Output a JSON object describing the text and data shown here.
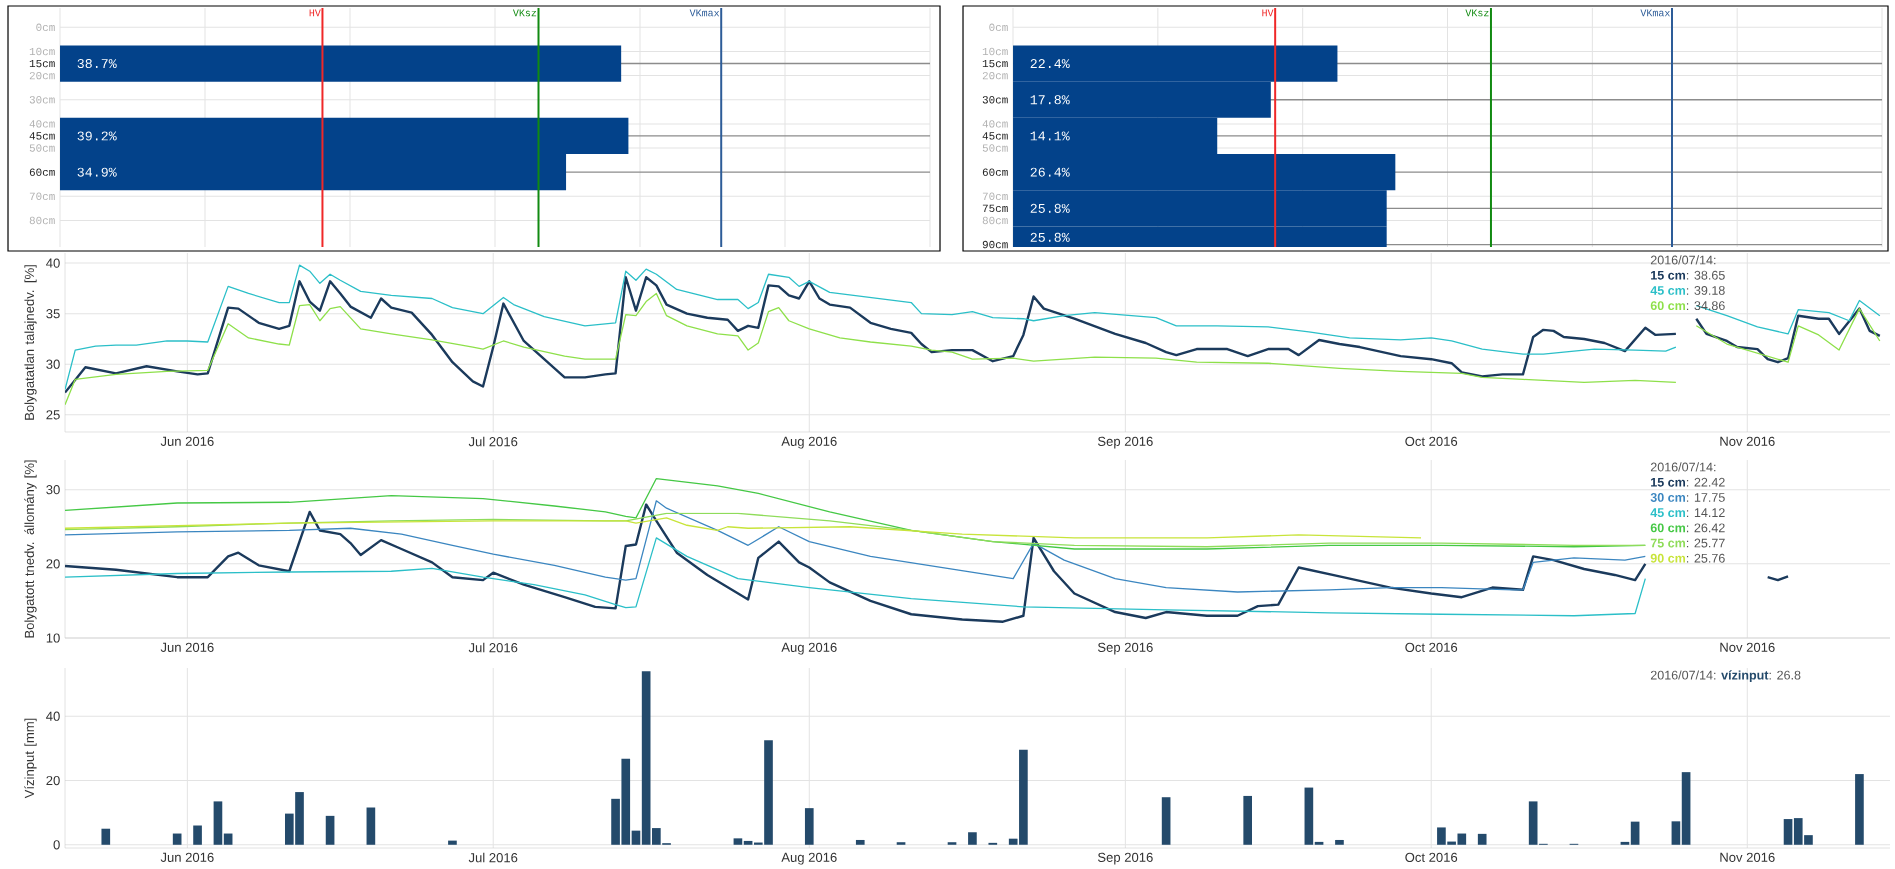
{
  "chart_data": [
    {
      "type": "bar",
      "orientation": "horizontal",
      "x": [
        15,
        45,
        60
      ],
      "values": [
        38.7,
        39.2,
        34.9
      ],
      "value_labels": [
        "38.7%",
        "39.2%",
        "34.9%"
      ],
      "color": "#03428a",
      "xlim": [
        0,
        60
      ],
      "xticks": [
        {
          "value": 0,
          "label": null
        },
        {
          "value": 10,
          "label": null
        },
        {
          "value": 20,
          "label": null
        },
        {
          "value": 30,
          "label": null
        },
        {
          "value": 40,
          "label": null
        },
        {
          "value": 50,
          "label": null
        },
        {
          "value": 60,
          "label": null
        }
      ],
      "ylim": [
        91,
        -8
      ],
      "yticks": [
        {
          "value": 0,
          "label": "0cm"
        },
        {
          "value": 10,
          "label": "10cm"
        },
        {
          "value": 15,
          "label": "15cm"
        },
        {
          "value": 20,
          "label": "20cm"
        },
        {
          "value": 30,
          "label": "30cm"
        },
        {
          "value": 40,
          "label": "40cm"
        },
        {
          "value": 45,
          "label": "45cm"
        },
        {
          "value": 50,
          "label": "50cm"
        },
        {
          "value": 60,
          "label": "60cm"
        },
        {
          "value": 70,
          "label": "70cm"
        },
        {
          "value": 80,
          "label": "80cm"
        }
      ],
      "grid": true,
      "tick_labels": "y",
      "ref_lines": [
        {
          "axis": "x",
          "value": 18.1,
          "label": "HV",
          "color": "#f02828"
        },
        {
          "axis": "x",
          "value": 33.0,
          "label": "VKsz",
          "color": "#118a11"
        },
        {
          "axis": "x",
          "value": 45.6,
          "label": "VKmax",
          "color": "#2d5c98"
        }
      ]
    },
    {
      "type": "bar",
      "orientation": "horizontal",
      "x": [
        15,
        30,
        45,
        60,
        75,
        90
      ],
      "values": [
        22.4,
        17.8,
        14.1,
        26.4,
        25.8,
        25.8
      ],
      "value_labels": [
        "22.4%",
        "17.8%",
        "14.1%",
        "26.4%",
        "25.8%",
        "25.8%"
      ],
      "color": "#03428a",
      "xlim": [
        0,
        60
      ],
      "xticks": [
        {
          "value": 0,
          "label": null
        },
        {
          "value": 10,
          "label": null
        },
        {
          "value": 20,
          "label": null
        },
        {
          "value": 30,
          "label": null
        },
        {
          "value": 40,
          "label": null
        },
        {
          "value": 50,
          "label": null
        },
        {
          "value": 60,
          "label": null
        }
      ],
      "ylim": [
        91,
        -8
      ],
      "yticks": [
        {
          "value": 0,
          "label": "0cm"
        },
        {
          "value": 10,
          "label": "10cm"
        },
        {
          "value": 15,
          "label": "15cm"
        },
        {
          "value": 20,
          "label": "20cm"
        },
        {
          "value": 30,
          "label": "30cm"
        },
        {
          "value": 40,
          "label": "40cm"
        },
        {
          "value": 45,
          "label": "45cm"
        },
        {
          "value": 50,
          "label": "50cm"
        },
        {
          "value": 60,
          "label": "60cm"
        },
        {
          "value": 70,
          "label": "70cm"
        },
        {
          "value": 75,
          "label": "75cm"
        },
        {
          "value": 80,
          "label": "80cm"
        },
        {
          "value": 90,
          "label": "90cm"
        }
      ],
      "grid": true,
      "tick_labels": "y",
      "ref_lines": [
        {
          "axis": "x",
          "value": 18.1,
          "label": "HV",
          "color": "#f02828"
        },
        {
          "axis": "x",
          "value": 33.0,
          "label": "VKsz",
          "color": "#118a11"
        },
        {
          "axis": "x",
          "value": 45.5,
          "label": "VKmax",
          "color": "#2d5c98"
        }
      ]
    },
    {
      "type": "line",
      "ylabel": "Bolygatatlan talajnedv. [%]",
      "legend": "top right",
      "legend_title": "2016/07/14:",
      "grid": true,
      "xlim": [
        "2016-05-20",
        "2016-11-15"
      ],
      "xticks": [
        {
          "value": "2016-06-01",
          "label": "Jun 2016"
        },
        {
          "value": "2016-07-01",
          "label": "Jul 2016"
        },
        {
          "value": "2016-08-01",
          "label": "Aug 2016"
        },
        {
          "value": "2016-09-01",
          "label": "Sep 2016"
        },
        {
          "value": "2016-10-01",
          "label": "Oct 2016"
        },
        {
          "value": "2016-11-01",
          "label": "Nov 2016"
        }
      ],
      "ylim": [
        23.3,
        41
      ],
      "yticks": [
        25,
        30,
        35,
        40
      ],
      "series": [
        {
          "name": "15 cm",
          "color": "#1b3a5c",
          "x": [
            "2016-05-20",
            "2016-05-22",
            "2016-05-25",
            "2016-05-28",
            "2016-05-31",
            "2016-06-02",
            "2016-06-03",
            "2016-06-05",
            "2016-06-06",
            "2016-06-08",
            "2016-06-10",
            "2016-06-11",
            "2016-06-12",
            "2016-06-13",
            "2016-06-14",
            "2016-06-15",
            "2016-06-16",
            "2016-06-17",
            "2016-06-19",
            "2016-06-20",
            "2016-06-21",
            "2016-06-23",
            "2016-06-25",
            "2016-06-27",
            "2016-06-29",
            "2016-06-30",
            "2016-07-01",
            "2016-07-02",
            "2016-07-04",
            "2016-07-06",
            "2016-07-08",
            "2016-07-10",
            "2016-07-12",
            "2016-07-13",
            "2016-07-14",
            "2016-07-15",
            "2016-07-16",
            "2016-07-17",
            "2016-07-18",
            "2016-07-20",
            "2016-07-22",
            "2016-07-24",
            "2016-07-25",
            "2016-07-26",
            "2016-07-27",
            "2016-07-28",
            "2016-07-29",
            "2016-07-30",
            "2016-07-31",
            "2016-08-01",
            "2016-08-02",
            "2016-08-03",
            "2016-08-05",
            "2016-08-07",
            "2016-08-09",
            "2016-08-11",
            "2016-08-12",
            "2016-08-13",
            "2016-08-15",
            "2016-08-17",
            "2016-08-19",
            "2016-08-21",
            "2016-08-22",
            "2016-08-23",
            "2016-08-24",
            "2016-08-27",
            "2016-08-31",
            "2016-09-03",
            "2016-09-05",
            "2016-09-06",
            "2016-09-08",
            "2016-09-11",
            "2016-09-13",
            "2016-09-15",
            "2016-09-17",
            "2016-09-18",
            "2016-09-20",
            "2016-09-22",
            "2016-09-24",
            "2016-09-28",
            "2016-10-01",
            "2016-10-03",
            "2016-10-04",
            "2016-10-06",
            "2016-10-08",
            "2016-10-10",
            "2016-10-11",
            "2016-10-12",
            "2016-10-13",
            "2016-10-14",
            "2016-10-16",
            "2016-10-18",
            "2016-10-20",
            "2016-10-22",
            "2016-10-23",
            "2016-10-25",
            "2016-10-26",
            "2016-10-27",
            "2016-10-28",
            "2016-10-30",
            "2016-10-31",
            "2016-11-02",
            "2016-11-03",
            "2016-11-04",
            "2016-11-05",
            "2016-11-06",
            "2016-11-08",
            "2016-11-09",
            "2016-11-10",
            "2016-11-12",
            "2016-11-13",
            "2016-11-14"
          ],
          "values": [
            27.2,
            29.7,
            29.1,
            29.8,
            29.3,
            29.0,
            29.1,
            35.6,
            35.5,
            34.1,
            33.5,
            33.8,
            38.2,
            36.2,
            35.3,
            38.2,
            37.0,
            35.7,
            34.6,
            36.5,
            35.6,
            35.1,
            32.9,
            30.2,
            28.3,
            27.8,
            31.7,
            36.0,
            32.3,
            30.5,
            28.7,
            28.7,
            29.0,
            29.1,
            38.6,
            35.3,
            38.6,
            37.8,
            35.9,
            35.0,
            34.6,
            34.4,
            33.3,
            33.8,
            33.6,
            37.8,
            37.7,
            36.8,
            36.5,
            38.2,
            36.5,
            35.9,
            35.6,
            34.1,
            33.5,
            33.1,
            32.0,
            31.2,
            31.4,
            31.4,
            30.3,
            30.8,
            32.9,
            36.7,
            35.5,
            34.5,
            33.0,
            32.1,
            31.2,
            30.9,
            31.5,
            31.5,
            30.8,
            31.5,
            31.5,
            30.9,
            32.4,
            32.0,
            31.7,
            30.8,
            30.5,
            30.1,
            29.2,
            28.8,
            29.0,
            29.0,
            32.7,
            33.4,
            33.3,
            32.7,
            32.5,
            32.1,
            31.3,
            33.6,
            32.9,
            33.0,
            null,
            34.5,
            33.0,
            32.3,
            31.7,
            31.5,
            30.5,
            30.2,
            30.6,
            34.8,
            34.5,
            34.5,
            33.0,
            35.5,
            33.3,
            32.8
          ]
        },
        {
          "name": "45 cm",
          "color": "#2bbfc8",
          "x": [
            "2016-05-20",
            "2016-05-21",
            "2016-05-23",
            "2016-05-25",
            "2016-05-27",
            "2016-05-30",
            "2016-06-01",
            "2016-06-03",
            "2016-06-05",
            "2016-06-07",
            "2016-06-10",
            "2016-06-11",
            "2016-06-12",
            "2016-06-13",
            "2016-06-14",
            "2016-06-15",
            "2016-06-16",
            "2016-06-18",
            "2016-06-21",
            "2016-06-25",
            "2016-06-27",
            "2016-06-30",
            "2016-07-02",
            "2016-07-03",
            "2016-07-06",
            "2016-07-10",
            "2016-07-13",
            "2016-07-14",
            "2016-07-15",
            "2016-07-16",
            "2016-07-17",
            "2016-07-19",
            "2016-07-23",
            "2016-07-25",
            "2016-07-26",
            "2016-07-27",
            "2016-07-28",
            "2016-07-30",
            "2016-07-31",
            "2016-08-01",
            "2016-08-03",
            "2016-08-07",
            "2016-08-11",
            "2016-08-12",
            "2016-08-15",
            "2016-08-17",
            "2016-08-19",
            "2016-08-22",
            "2016-08-23",
            "2016-08-26",
            "2016-08-29",
            "2016-09-04",
            "2016-09-06",
            "2016-09-10",
            "2016-09-15",
            "2016-09-19",
            "2016-09-23",
            "2016-09-28",
            "2016-10-01",
            "2016-10-03",
            "2016-10-06",
            "2016-10-10",
            "2016-10-12",
            "2016-10-17",
            "2016-10-21",
            "2016-10-24",
            "2016-10-25",
            "2016-10-26",
            "2016-10-27",
            "2016-10-30",
            "2016-11-02",
            "2016-11-05",
            "2016-11-06",
            "2016-11-09",
            "2016-11-11",
            "2016-11-12",
            "2016-11-14"
          ],
          "values": [
            27.5,
            31.4,
            31.8,
            31.9,
            31.9,
            32.3,
            32.3,
            32.2,
            37.7,
            37.0,
            36.1,
            36.1,
            39.8,
            39.2,
            38.0,
            38.9,
            38.3,
            37.2,
            36.8,
            36.5,
            35.6,
            35.0,
            36.6,
            35.9,
            34.7,
            33.8,
            34.1,
            39.2,
            38.3,
            39.4,
            38.9,
            37.4,
            36.4,
            36.4,
            35.5,
            36.1,
            38.9,
            38.6,
            37.7,
            38.2,
            37.1,
            36.6,
            36.1,
            35.0,
            34.9,
            35.2,
            34.6,
            34.5,
            34.3,
            34.8,
            35.1,
            34.6,
            33.8,
            33.8,
            33.7,
            33.2,
            32.6,
            32.4,
            32.6,
            32.3,
            31.5,
            31.0,
            31.0,
            31.5,
            31.4,
            31.3,
            31.7,
            null,
            35.8,
            34.8,
            33.7,
            33.0,
            35.4,
            35.1,
            34.3,
            36.3,
            34.8
          ]
        },
        {
          "name": "60 cm",
          "color": "#8ee04a",
          "x": [
            "2016-05-20",
            "2016-05-21",
            "2016-05-25",
            "2016-05-30",
            "2016-06-03",
            "2016-06-05",
            "2016-06-07",
            "2016-06-10",
            "2016-06-11",
            "2016-06-12",
            "2016-06-13",
            "2016-06-14",
            "2016-06-15",
            "2016-06-16",
            "2016-06-18",
            "2016-06-21",
            "2016-06-25",
            "2016-06-29",
            "2016-06-30",
            "2016-07-02",
            "2016-07-04",
            "2016-07-08",
            "2016-07-10",
            "2016-07-13",
            "2016-07-14",
            "2016-07-15",
            "2016-07-16",
            "2016-07-17",
            "2016-07-18",
            "2016-07-20",
            "2016-07-23",
            "2016-07-25",
            "2016-07-26",
            "2016-07-27",
            "2016-07-28",
            "2016-07-29",
            "2016-07-30",
            "2016-08-01",
            "2016-08-04",
            "2016-08-07",
            "2016-08-11",
            "2016-08-13",
            "2016-08-15",
            "2016-08-17",
            "2016-08-21",
            "2016-08-23",
            "2016-08-29",
            "2016-09-04",
            "2016-09-08",
            "2016-09-15",
            "2016-09-22",
            "2016-09-28",
            "2016-10-04",
            "2016-10-06",
            "2016-10-10",
            "2016-10-16",
            "2016-10-21",
            "2016-10-25",
            "2016-10-26",
            "2016-10-27",
            "2016-10-30",
            "2016-11-02",
            "2016-11-05",
            "2016-11-06",
            "2016-11-08",
            "2016-11-10",
            "2016-11-12",
            "2016-11-14"
          ],
          "values": [
            26.0,
            28.5,
            29.0,
            29.3,
            29.4,
            34.0,
            32.6,
            32.0,
            31.9,
            35.8,
            35.9,
            34.3,
            35.5,
            35.7,
            33.5,
            33.0,
            32.4,
            31.7,
            31.5,
            32.3,
            31.7,
            30.8,
            30.5,
            30.5,
            34.9,
            34.8,
            36.2,
            37.0,
            34.8,
            33.8,
            33.0,
            32.8,
            31.4,
            32.1,
            35.2,
            35.6,
            34.3,
            33.5,
            32.6,
            32.2,
            31.8,
            31.4,
            31.2,
            30.5,
            30.6,
            30.3,
            30.7,
            30.6,
            30.2,
            30.1,
            29.6,
            29.3,
            29.1,
            28.7,
            28.5,
            28.2,
            28.4,
            28.2,
            null,
            33.8,
            32.0,
            31.1,
            30.2,
            33.8,
            32.9,
            31.4,
            35.5,
            32.3
          ]
        }
      ],
      "annotations": [
        ": 38.65",
        ": 39.18",
        ": 34.86"
      ]
    },
    {
      "type": "line",
      "ylabel": "Bolygatott tnedv. állomány [%]",
      "legend": "top right",
      "legend_title": "2016/07/14:",
      "grid": true,
      "xlim": [
        "2016-05-20",
        "2016-11-15"
      ],
      "xticks": [
        {
          "value": "2016-06-01",
          "label": "Jun 2016"
        },
        {
          "value": "2016-07-01",
          "label": "Jul 2016"
        },
        {
          "value": "2016-08-01",
          "label": "Aug 2016"
        },
        {
          "value": "2016-09-01",
          "label": "Sep 2016"
        },
        {
          "value": "2016-10-01",
          "label": "Oct 2016"
        },
        {
          "value": "2016-11-01",
          "label": "Nov 2016"
        }
      ],
      "ylim": [
        10,
        34
      ],
      "yticks": [
        10,
        20,
        30
      ],
      "series": [
        {
          "name": "15 cm",
          "color": "#1b3a5c",
          "x": [
            "2016-05-20",
            "2016-05-25",
            "2016-05-31",
            "2016-06-03",
            "2016-06-05",
            "2016-06-06",
            "2016-06-08",
            "2016-06-11",
            "2016-06-13",
            "2016-06-14",
            "2016-06-16",
            "2016-06-17",
            "2016-06-18",
            "2016-06-20",
            "2016-06-22",
            "2016-06-25",
            "2016-06-27",
            "2016-06-30",
            "2016-07-01",
            "2016-07-04",
            "2016-07-08",
            "2016-07-11",
            "2016-07-13",
            "2016-07-14",
            "2016-07-15",
            "2016-07-16",
            "2016-07-17",
            "2016-07-19",
            "2016-07-22",
            "2016-07-26",
            "2016-07-27",
            "2016-07-29",
            "2016-07-31",
            "2016-08-01",
            "2016-08-03",
            "2016-08-07",
            "2016-08-11",
            "2016-08-16",
            "2016-08-20",
            "2016-08-22",
            "2016-08-23",
            "2016-08-25",
            "2016-08-27",
            "2016-08-31",
            "2016-09-03",
            "2016-09-05",
            "2016-09-09",
            "2016-09-12",
            "2016-09-14",
            "2016-09-16",
            "2016-09-18",
            "2016-09-22",
            "2016-09-27",
            "2016-10-01",
            "2016-10-04",
            "2016-10-07",
            "2016-10-10",
            "2016-10-11",
            "2016-10-13",
            "2016-10-16",
            "2016-10-19",
            "2016-10-21",
            "2016-10-22",
            "2016-10-23",
            "2016-11-03",
            "2016-11-04",
            "2016-11-05"
          ],
          "values": [
            19.7,
            19.2,
            18.2,
            18.2,
            21.0,
            21.5,
            19.8,
            19.0,
            27.0,
            24.5,
            24.0,
            22.8,
            21.2,
            23.2,
            22.0,
            20.2,
            18.2,
            17.8,
            18.8,
            17.2,
            15.5,
            14.2,
            14.0,
            22.4,
            22.6,
            28.0,
            25.8,
            21.5,
            18.5,
            15.2,
            20.8,
            23.0,
            20.2,
            19.5,
            17.5,
            15.0,
            13.2,
            12.5,
            12.2,
            13.0,
            23.5,
            19.0,
            16.0,
            13.5,
            12.7,
            13.5,
            13.0,
            13.0,
            14.3,
            14.5,
            19.5,
            18.3,
            16.8,
            16.0,
            15.5,
            16.8,
            16.5,
            21.0,
            20.5,
            19.3,
            18.5,
            17.8,
            20.0,
            null,
            18.2,
            17.8,
            18.3
          ]
        },
        {
          "name": "30 cm",
          "color": "#3b86c0",
          "x": [
            "2016-05-20",
            "2016-05-31",
            "2016-06-11",
            "2016-06-17",
            "2016-06-22",
            "2016-06-27",
            "2016-07-01",
            "2016-07-07",
            "2016-07-12",
            "2016-07-14",
            "2016-07-15",
            "2016-07-17",
            "2016-07-18",
            "2016-07-23",
            "2016-07-26",
            "2016-07-29",
            "2016-08-01",
            "2016-08-07",
            "2016-08-14",
            "2016-08-21",
            "2016-08-23",
            "2016-08-26",
            "2016-08-31",
            "2016-09-05",
            "2016-09-12",
            "2016-09-21",
            "2016-09-27",
            "2016-10-02",
            "2016-10-09",
            "2016-10-10",
            "2016-10-11",
            "2016-10-15",
            "2016-10-20",
            "2016-10-22"
          ],
          "values": [
            23.9,
            24.3,
            24.5,
            24.8,
            24.0,
            22.5,
            21.3,
            19.8,
            18.2,
            17.8,
            18.0,
            28.5,
            27.5,
            24.5,
            22.5,
            25.0,
            23.0,
            21.0,
            19.5,
            18.0,
            22.8,
            20.5,
            18.0,
            16.8,
            16.2,
            16.5,
            16.8,
            16.8,
            16.5,
            16.5,
            20.2,
            20.8,
            20.5,
            21.0
          ]
        },
        {
          "name": "45 cm",
          "color": "#2bbfc8",
          "x": [
            "2016-05-20",
            "2016-05-31",
            "2016-06-11",
            "2016-06-21",
            "2016-06-25",
            "2016-06-30",
            "2016-07-05",
            "2016-07-10",
            "2016-07-13",
            "2016-07-14",
            "2016-07-15",
            "2016-07-17",
            "2016-07-20",
            "2016-07-25",
            "2016-08-01",
            "2016-08-11",
            "2016-08-22",
            "2016-09-05",
            "2016-09-21",
            "2016-10-02",
            "2016-10-15",
            "2016-10-21",
            "2016-10-22"
          ],
          "values": [
            18.2,
            18.7,
            18.9,
            19.0,
            19.4,
            18.2,
            17.2,
            15.8,
            14.5,
            14.1,
            14.2,
            23.5,
            21.0,
            18.0,
            16.8,
            15.3,
            14.2,
            13.8,
            13.4,
            13.2,
            13.0,
            13.3,
            18.0
          ]
        },
        {
          "name": "60 cm",
          "color": "#45c845",
          "x": [
            "2016-05-20",
            "2016-05-31",
            "2016-06-11",
            "2016-06-21",
            "2016-06-30",
            "2016-07-07",
            "2016-07-12",
            "2016-07-14",
            "2016-07-15",
            "2016-07-17",
            "2016-07-23",
            "2016-07-27",
            "2016-08-03",
            "2016-08-11",
            "2016-08-19",
            "2016-08-27",
            "2016-09-09",
            "2016-09-21",
            "2016-10-02",
            "2016-10-15",
            "2016-10-22"
          ],
          "values": [
            27.2,
            28.2,
            28.3,
            29.2,
            28.8,
            27.8,
            27.0,
            26.4,
            26.2,
            31.5,
            30.5,
            29.5,
            27.0,
            24.5,
            23.0,
            22.0,
            22.0,
            22.5,
            22.5,
            22.3,
            22.5
          ]
        },
        {
          "name": "75 cm",
          "color": "#8fdc5a",
          "x": [
            "2016-05-20",
            "2016-05-31",
            "2016-06-11",
            "2016-06-21",
            "2016-07-01",
            "2016-07-12",
            "2016-07-14",
            "2016-07-18",
            "2016-07-25",
            "2016-08-03",
            "2016-08-11",
            "2016-08-19",
            "2016-08-27",
            "2016-09-09",
            "2016-09-21",
            "2016-10-02",
            "2016-10-15",
            "2016-10-22"
          ],
          "values": [
            24.6,
            25.0,
            25.5,
            25.8,
            26.0,
            25.8,
            25.8,
            26.8,
            26.8,
            25.8,
            24.5,
            23.0,
            22.5,
            22.3,
            22.8,
            22.8,
            22.5,
            22.5
          ]
        },
        {
          "name": "90 cm",
          "color": "#c8e43a",
          "x": [
            "2016-05-20",
            "2016-06-11",
            "2016-07-01",
            "2016-07-12",
            "2016-07-14",
            "2016-07-15",
            "2016-07-18",
            "2016-07-20",
            "2016-07-23",
            "2016-07-24",
            "2016-07-26",
            "2016-08-05",
            "2016-08-16",
            "2016-08-27",
            "2016-09-09",
            "2016-09-18",
            "2016-09-30"
          ],
          "values": [
            24.8,
            25.5,
            25.8,
            25.8,
            25.8,
            25.5,
            26.2,
            25.2,
            24.5,
            25.0,
            24.8,
            25.0,
            24.0,
            23.5,
            23.5,
            23.9,
            23.5
          ]
        }
      ],
      "annotations": [
        ": 22.42",
        ": 17.75",
        ": 14.12",
        ": 26.42",
        ": 25.77",
        ": 25.76"
      ]
    },
    {
      "type": "bar",
      "ylabel": "Vízinput [mm]",
      "legend": "top right",
      "legend_title": "2016/07/14:",
      "grid": true,
      "xlim": [
        "2016-05-20",
        "2016-11-15"
      ],
      "xticks": [
        {
          "value": "2016-06-01",
          "label": "Jun 2016"
        },
        {
          "value": "2016-07-01",
          "label": "Jul 2016"
        },
        {
          "value": "2016-08-01",
          "label": "Aug 2016"
        },
        {
          "value": "2016-09-01",
          "label": "Sep 2016"
        },
        {
          "value": "2016-10-01",
          "label": "Oct 2016"
        },
        {
          "value": "2016-11-01",
          "label": "Nov 2016"
        }
      ],
      "ylim": [
        -1,
        55
      ],
      "yticks": [
        0,
        20,
        40
      ],
      "series": [
        {
          "name": "vízinput",
          "color": "#244a6b",
          "x": [
            "2016-05-24",
            "2016-05-31",
            "2016-06-02",
            "2016-06-04",
            "2016-06-05",
            "2016-06-11",
            "2016-06-12",
            "2016-06-15",
            "2016-06-19",
            "2016-06-27",
            "2016-07-13",
            "2016-07-14",
            "2016-07-15",
            "2016-07-16",
            "2016-07-17",
            "2016-07-18",
            "2016-07-25",
            "2016-07-26",
            "2016-07-27",
            "2016-07-28",
            "2016-08-01",
            "2016-08-06",
            "2016-08-10",
            "2016-08-15",
            "2016-08-17",
            "2016-08-19",
            "2016-08-21",
            "2016-08-22",
            "2016-09-05",
            "2016-09-13",
            "2016-09-19",
            "2016-09-20",
            "2016-09-22",
            "2016-10-02",
            "2016-10-03",
            "2016-10-04",
            "2016-10-06",
            "2016-10-11",
            "2016-10-12",
            "2016-10-15",
            "2016-10-20",
            "2016-10-21",
            "2016-10-25",
            "2016-10-26",
            "2016-11-05",
            "2016-11-06",
            "2016-11-07",
            "2016-11-12"
          ],
          "values": [
            5.0,
            3.5,
            6.0,
            13.5,
            3.5,
            9.7,
            16.4,
            9.0,
            11.6,
            1.3,
            14.3,
            26.8,
            4.4,
            54,
            5.2,
            0.5,
            2.0,
            1.2,
            0.7,
            32.5,
            11.4,
            1.5,
            0.8,
            0.8,
            3.9,
            0.6,
            1.9,
            29.6,
            14.8,
            15.2,
            17.8,
            0.9,
            1.5,
            5.4,
            1.0,
            3.5,
            3.4,
            13.5,
            0.3,
            0.3,
            0.9,
            7.2,
            7.3,
            22.6,
            8.0,
            8.3,
            3.0,
            22.0
          ]
        }
      ],
      "annotations": [
        ": 26.8"
      ]
    }
  ]
}
